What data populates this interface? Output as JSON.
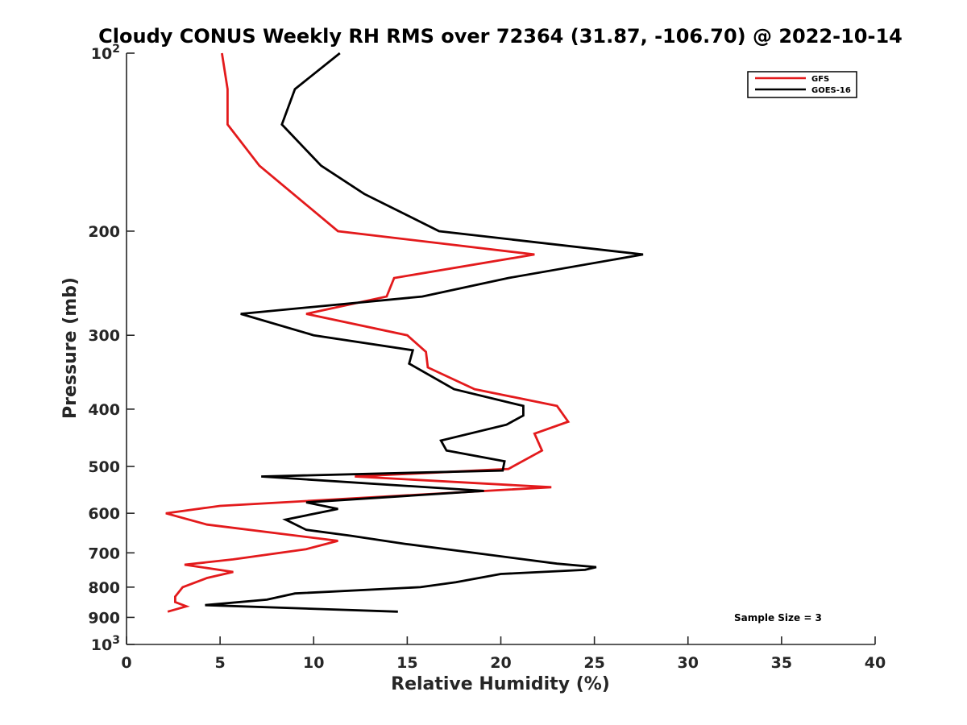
{
  "chart_data": {
    "type": "line",
    "title": "Cloudy CONUS Weekly RH RMS over 72364 (31.87, -106.70) @ 2022-10-14",
    "xlabel": "Relative Humidity (%)",
    "ylabel": "Pressure (mb)",
    "xlim": [
      0,
      40
    ],
    "ylim": [
      100,
      1000
    ],
    "y_scale": "log",
    "y_reversed": true,
    "xticks": [
      0,
      5,
      10,
      15,
      20,
      25,
      30,
      35,
      40
    ],
    "xtick_labels": [
      "0",
      "5",
      "10",
      "15",
      "20",
      "25",
      "30",
      "35",
      "40"
    ],
    "yticks": [
      100,
      200,
      300,
      400,
      500,
      600,
      700,
      800,
      900,
      1000
    ],
    "ytick_labels": [
      "10^2",
      "200",
      "300",
      "400",
      "500",
      "600",
      "700",
      "800",
      "900",
      "10^3"
    ],
    "grid": false,
    "legend_position": "top-right",
    "annotation": "Sample Size = 3",
    "series": [
      {
        "name": "GFS",
        "color": "#e31a1c",
        "points": [
          [
            5.1,
            100
          ],
          [
            5.4,
            115
          ],
          [
            5.4,
            132
          ],
          [
            7.1,
            155
          ],
          [
            11.3,
            200
          ],
          [
            21.8,
            219
          ],
          [
            14.3,
            240
          ],
          [
            13.9,
            258
          ],
          [
            9.6,
            276
          ],
          [
            15.0,
            300
          ],
          [
            16.0,
            320
          ],
          [
            16.1,
            340
          ],
          [
            18.6,
            370
          ],
          [
            23.0,
            395
          ],
          [
            23.6,
            420
          ],
          [
            21.8,
            440
          ],
          [
            22.2,
            470
          ],
          [
            20.4,
            505
          ],
          [
            12.2,
            520
          ],
          [
            22.7,
            542
          ],
          [
            5.0,
            583
          ],
          [
            2.1,
            600
          ],
          [
            4.3,
            627
          ],
          [
            11.3,
            668
          ],
          [
            9.6,
            690
          ],
          [
            5.7,
            718
          ],
          [
            3.1,
            733
          ],
          [
            5.7,
            754
          ],
          [
            4.3,
            772
          ],
          [
            3.0,
            800
          ],
          [
            2.6,
            830
          ],
          [
            2.6,
            848
          ],
          [
            3.2,
            862
          ],
          [
            2.2,
            880
          ]
        ]
      },
      {
        "name": "GOES-16",
        "color": "#000000",
        "points": [
          [
            11.4,
            100
          ],
          [
            9.0,
            115
          ],
          [
            8.3,
            132
          ],
          [
            10.4,
            155
          ],
          [
            12.7,
            173
          ],
          [
            16.7,
            200
          ],
          [
            27.6,
            219
          ],
          [
            20.4,
            240
          ],
          [
            15.8,
            258
          ],
          [
            6.1,
            276
          ],
          [
            10.0,
            300
          ],
          [
            15.3,
            318
          ],
          [
            15.1,
            335
          ],
          [
            17.5,
            370
          ],
          [
            21.2,
            395
          ],
          [
            21.2,
            410
          ],
          [
            20.3,
            425
          ],
          [
            16.8,
            452
          ],
          [
            17.1,
            470
          ],
          [
            20.2,
            490
          ],
          [
            20.1,
            508
          ],
          [
            7.2,
            520
          ],
          [
            19.1,
            550
          ],
          [
            9.6,
            575
          ],
          [
            11.3,
            590
          ],
          [
            8.5,
            615
          ],
          [
            9.6,
            640
          ],
          [
            12.0,
            655
          ],
          [
            14.9,
            676
          ],
          [
            23.0,
            730
          ],
          [
            25.1,
            740
          ],
          [
            24.5,
            748
          ],
          [
            20.0,
            760
          ],
          [
            17.6,
            785
          ],
          [
            15.7,
            800
          ],
          [
            9.0,
            820
          ],
          [
            7.5,
            840
          ],
          [
            4.2,
            858
          ],
          [
            14.5,
            880
          ]
        ]
      }
    ]
  }
}
